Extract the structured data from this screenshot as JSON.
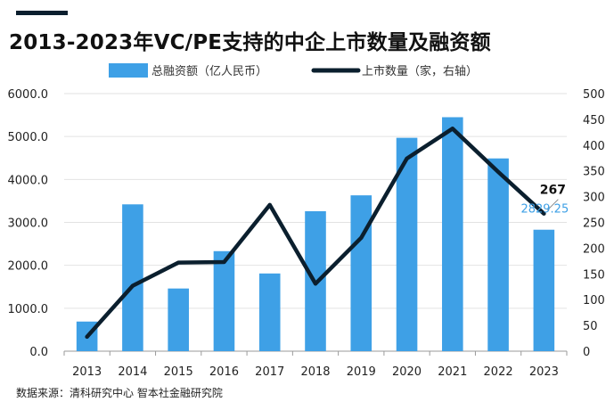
{
  "header": {
    "title": "2013-2023年VC/PE支持的中企上市数量及融资额"
  },
  "footer": {
    "source": "数据来源：清科研究中心 智本社金融研究院"
  },
  "chart_data": {
    "type": "bar",
    "title": "2013-2023年VC/PE支持的中企上市数量及融资额",
    "categories": [
      "2013",
      "2014",
      "2015",
      "2016",
      "2017",
      "2018",
      "2019",
      "2020",
      "2021",
      "2022",
      "2023"
    ],
    "series": [
      {
        "name": "总融资额（亿人民币）",
        "type": "bar",
        "axis": "left",
        "color": "#3ea0e6",
        "values": [
          690,
          3420,
          1460,
          2330,
          1810,
          3260,
          3630,
          4970,
          5450,
          4490,
          2829.25
        ]
      },
      {
        "name": "上市数量（家，右轴）",
        "type": "line",
        "axis": "right",
        "color": "#0b1f2e",
        "values": [
          28,
          127,
          172,
          173,
          284,
          131,
          220,
          374,
          432,
          348,
          267
        ]
      }
    ],
    "y_left": {
      "min": 0,
      "max": 6000,
      "ticks": [
        "0.0",
        "1000.0",
        "2000.0",
        "3000.0",
        "4000.0",
        "5000.0",
        "6000.0"
      ]
    },
    "y_right": {
      "min": 0,
      "max": 500,
      "ticks": [
        "0",
        "50",
        "100",
        "150",
        "200",
        "250",
        "300",
        "350",
        "400",
        "450",
        "500"
      ]
    },
    "annotations": [
      {
        "series": 1,
        "index": 10,
        "text": "267"
      },
      {
        "series": 0,
        "index": 10,
        "text": "2829.25"
      }
    ],
    "grid": true,
    "legend": "top"
  }
}
